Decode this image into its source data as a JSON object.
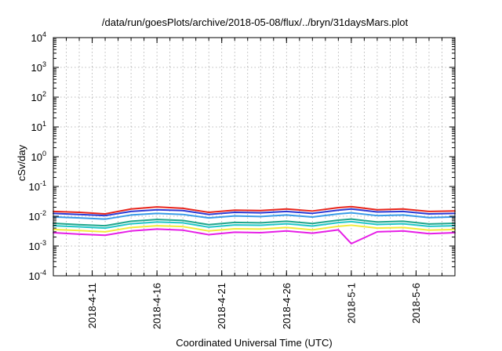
{
  "chart_data": {
    "type": "line",
    "title": "/data/run/goesPlots/archive/2018-05-08/flux/../bryn/31daysMars.plot",
    "xlabel": "Coordinated Universal Time (UTC)",
    "ylabel": "cSv/day",
    "yscale": "log",
    "ylim": [
      0.0001,
      10000
    ],
    "xlim": [
      "2018-04-08",
      "2018-05-09"
    ],
    "grid": true,
    "legend": "none",
    "y_ticks": [
      {
        "value": 0.0001,
        "base": "10",
        "exp": "-4"
      },
      {
        "value": 0.001,
        "base": "10",
        "exp": "-3"
      },
      {
        "value": 0.01,
        "base": "10",
        "exp": "-2"
      },
      {
        "value": 0.1,
        "base": "10",
        "exp": "-1"
      },
      {
        "value": 1,
        "base": "10",
        "exp": "0"
      },
      {
        "value": 10,
        "base": "10",
        "exp": "1"
      },
      {
        "value": 100,
        "base": "10",
        "exp": "2"
      },
      {
        "value": 1000,
        "base": "10",
        "exp": "3"
      },
      {
        "value": 10000,
        "base": "10",
        "exp": "4"
      }
    ],
    "x_ticks": [
      {
        "value": "2018-04-11",
        "label": "2018-4-11"
      },
      {
        "value": "2018-04-16",
        "label": "2018-4-16"
      },
      {
        "value": "2018-04-21",
        "label": "2018-4-21"
      },
      {
        "value": "2018-04-26",
        "label": "2018-4-26"
      },
      {
        "value": "2018-05-01",
        "label": "2018-5-1"
      },
      {
        "value": "2018-05-06",
        "label": "2018-5-6"
      }
    ],
    "series": [
      {
        "color": "#e8261c",
        "values": [
          {
            "x": "2018-04-08",
            "y": 0.0145
          },
          {
            "x": "2018-04-10",
            "y": 0.0135
          },
          {
            "x": "2018-04-12",
            "y": 0.012
          },
          {
            "x": "2018-04-14",
            "y": 0.0175
          },
          {
            "x": "2018-04-16",
            "y": 0.0205
          },
          {
            "x": "2018-04-18",
            "y": 0.0185
          },
          {
            "x": "2018-04-20",
            "y": 0.0135
          },
          {
            "x": "2018-04-22",
            "y": 0.016
          },
          {
            "x": "2018-04-24",
            "y": 0.0155
          },
          {
            "x": "2018-04-26",
            "y": 0.0175
          },
          {
            "x": "2018-04-28",
            "y": 0.015
          },
          {
            "x": "2018-04-30",
            "y": 0.0195
          },
          {
            "x": "2018-05-01",
            "y": 0.021
          },
          {
            "x": "2018-05-03",
            "y": 0.0165
          },
          {
            "x": "2018-05-05",
            "y": 0.0175
          },
          {
            "x": "2018-05-07",
            "y": 0.0145
          },
          {
            "x": "2018-05-09",
            "y": 0.015
          }
        ]
      },
      {
        "color": "#2a3bd6",
        "values": [
          {
            "x": "2018-04-08",
            "y": 0.0125
          },
          {
            "x": "2018-04-10",
            "y": 0.0115
          },
          {
            "x": "2018-04-12",
            "y": 0.0105
          },
          {
            "x": "2018-04-14",
            "y": 0.0145
          },
          {
            "x": "2018-04-16",
            "y": 0.0165
          },
          {
            "x": "2018-04-18",
            "y": 0.0155
          },
          {
            "x": "2018-04-20",
            "y": 0.0115
          },
          {
            "x": "2018-04-22",
            "y": 0.0135
          },
          {
            "x": "2018-04-24",
            "y": 0.013
          },
          {
            "x": "2018-04-26",
            "y": 0.0145
          },
          {
            "x": "2018-04-28",
            "y": 0.0125
          },
          {
            "x": "2018-04-30",
            "y": 0.016
          },
          {
            "x": "2018-05-01",
            "y": 0.0175
          },
          {
            "x": "2018-05-03",
            "y": 0.014
          },
          {
            "x": "2018-05-05",
            "y": 0.0145
          },
          {
            "x": "2018-05-07",
            "y": 0.012
          },
          {
            "x": "2018-05-09",
            "y": 0.0125
          }
        ]
      },
      {
        "color": "#3a9be8",
        "values": [
          {
            "x": "2018-04-08",
            "y": 0.0095
          },
          {
            "x": "2018-04-10",
            "y": 0.0088
          },
          {
            "x": "2018-04-12",
            "y": 0.008
          },
          {
            "x": "2018-04-14",
            "y": 0.011
          },
          {
            "x": "2018-04-16",
            "y": 0.0125
          },
          {
            "x": "2018-04-18",
            "y": 0.0115
          },
          {
            "x": "2018-04-20",
            "y": 0.0088
          },
          {
            "x": "2018-04-22",
            "y": 0.0102
          },
          {
            "x": "2018-04-24",
            "y": 0.0098
          },
          {
            "x": "2018-04-26",
            "y": 0.011
          },
          {
            "x": "2018-04-28",
            "y": 0.0094
          },
          {
            "x": "2018-04-30",
            "y": 0.012
          },
          {
            "x": "2018-05-01",
            "y": 0.013
          },
          {
            "x": "2018-05-03",
            "y": 0.0105
          },
          {
            "x": "2018-05-05",
            "y": 0.011
          },
          {
            "x": "2018-05-07",
            "y": 0.009
          },
          {
            "x": "2018-05-09",
            "y": 0.0095
          }
        ]
      },
      {
        "color": "#1fa68c",
        "values": [
          {
            "x": "2018-04-08",
            "y": 0.0058
          },
          {
            "x": "2018-04-10",
            "y": 0.0052
          },
          {
            "x": "2018-04-12",
            "y": 0.0048
          },
          {
            "x": "2018-04-14",
            "y": 0.0068
          },
          {
            "x": "2018-04-16",
            "y": 0.0078
          },
          {
            "x": "2018-04-18",
            "y": 0.0072
          },
          {
            "x": "2018-04-20",
            "y": 0.0052
          },
          {
            "x": "2018-04-22",
            "y": 0.0062
          },
          {
            "x": "2018-04-24",
            "y": 0.006
          },
          {
            "x": "2018-04-26",
            "y": 0.0068
          },
          {
            "x": "2018-04-28",
            "y": 0.0057
          },
          {
            "x": "2018-04-30",
            "y": 0.0074
          },
          {
            "x": "2018-05-01",
            "y": 0.008
          },
          {
            "x": "2018-05-03",
            "y": 0.0064
          },
          {
            "x": "2018-05-05",
            "y": 0.0068
          },
          {
            "x": "2018-05-07",
            "y": 0.0055
          },
          {
            "x": "2018-05-09",
            "y": 0.0058
          }
        ]
      },
      {
        "color": "#22c7c7",
        "values": [
          {
            "x": "2018-04-08",
            "y": 0.0048
          },
          {
            "x": "2018-04-10",
            "y": 0.0044
          },
          {
            "x": "2018-04-12",
            "y": 0.004
          },
          {
            "x": "2018-04-14",
            "y": 0.0056
          },
          {
            "x": "2018-04-16",
            "y": 0.0064
          },
          {
            "x": "2018-04-18",
            "y": 0.006
          },
          {
            "x": "2018-04-20",
            "y": 0.0043
          },
          {
            "x": "2018-04-22",
            "y": 0.0051
          },
          {
            "x": "2018-04-24",
            "y": 0.005
          },
          {
            "x": "2018-04-26",
            "y": 0.0056
          },
          {
            "x": "2018-04-28",
            "y": 0.0047
          },
          {
            "x": "2018-04-30",
            "y": 0.0061
          },
          {
            "x": "2018-05-01",
            "y": 0.0066
          },
          {
            "x": "2018-05-03",
            "y": 0.0053
          },
          {
            "x": "2018-05-05",
            "y": 0.0056
          },
          {
            "x": "2018-05-07",
            "y": 0.0046
          },
          {
            "x": "2018-05-09",
            "y": 0.0048
          }
        ]
      },
      {
        "color": "#f2ea3a",
        "values": [
          {
            "x": "2018-04-08",
            "y": 0.0036
          },
          {
            "x": "2018-04-10",
            "y": 0.0033
          },
          {
            "x": "2018-04-12",
            "y": 0.003
          },
          {
            "x": "2018-04-14",
            "y": 0.0042
          },
          {
            "x": "2018-04-16",
            "y": 0.0048
          },
          {
            "x": "2018-04-18",
            "y": 0.0045
          },
          {
            "x": "2018-04-20",
            "y": 0.0032
          },
          {
            "x": "2018-04-22",
            "y": 0.0038
          },
          {
            "x": "2018-04-24",
            "y": 0.0037
          },
          {
            "x": "2018-04-26",
            "y": 0.0042
          },
          {
            "x": "2018-04-28",
            "y": 0.0035
          },
          {
            "x": "2018-04-30",
            "y": 0.0046
          },
          {
            "x": "2018-05-01",
            "y": 0.005
          },
          {
            "x": "2018-05-03",
            "y": 0.004
          },
          {
            "x": "2018-05-05",
            "y": 0.0042
          },
          {
            "x": "2018-05-07",
            "y": 0.0034
          },
          {
            "x": "2018-05-09",
            "y": 0.0036
          }
        ]
      },
      {
        "color": "#e61ee6",
        "values": [
          {
            "x": "2018-04-08",
            "y": 0.0028
          },
          {
            "x": "2018-04-10",
            "y": 0.0025
          },
          {
            "x": "2018-04-12",
            "y": 0.0023
          },
          {
            "x": "2018-04-14",
            "y": 0.0032
          },
          {
            "x": "2018-04-16",
            "y": 0.0037
          },
          {
            "x": "2018-04-18",
            "y": 0.0034
          },
          {
            "x": "2018-04-20",
            "y": 0.0024
          },
          {
            "x": "2018-04-22",
            "y": 0.0029
          },
          {
            "x": "2018-04-24",
            "y": 0.0028
          },
          {
            "x": "2018-04-26",
            "y": 0.0032
          },
          {
            "x": "2018-04-28",
            "y": 0.0027
          },
          {
            "x": "2018-04-30",
            "y": 0.0035
          },
          {
            "x": "2018-05-01",
            "y": 0.0012
          },
          {
            "x": "2018-05-03",
            "y": 0.003
          },
          {
            "x": "2018-05-05",
            "y": 0.0032
          },
          {
            "x": "2018-05-07",
            "y": 0.0026
          },
          {
            "x": "2018-05-09",
            "y": 0.0028
          }
        ]
      }
    ]
  }
}
